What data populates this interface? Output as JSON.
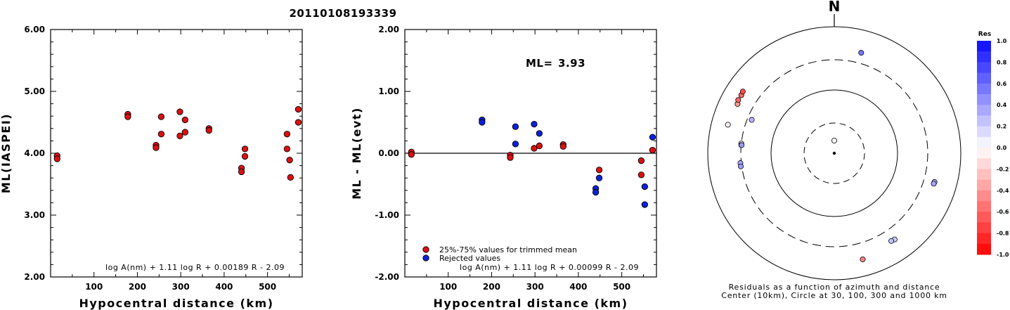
{
  "title": "20110108193339",
  "ml_summary": {
    "label": "ML=",
    "value": "3.93"
  },
  "colors": {
    "accepted": "#dd1111",
    "rejected": "#0a22dd"
  },
  "chart_data": [
    {
      "type": "scatter",
      "name": "left",
      "xlabel": "Hypocentral distance (km)",
      "ylabel": "ML(IASPEI)",
      "xlim": [
        0,
        580
      ],
      "ylim": [
        2.0,
        6.0
      ],
      "xticks": [
        "100",
        "200",
        "300",
        "400",
        "500"
      ],
      "yticks": [
        "2.00",
        "3.00",
        "4.00",
        "5.00",
        "6.00"
      ],
      "formula": "log A(nm) + 1.11 log R + 0.00189 R - 2.09",
      "points": [
        {
          "x": 15,
          "y": 3.96
        },
        {
          "x": 15,
          "y": 3.91
        },
        {
          "x": 178,
          "y": 4.63
        },
        {
          "x": 178,
          "y": 4.59
        },
        {
          "x": 243,
          "y": 4.13
        },
        {
          "x": 243,
          "y": 4.09
        },
        {
          "x": 255,
          "y": 4.59
        },
        {
          "x": 255,
          "y": 4.31
        },
        {
          "x": 298,
          "y": 4.67
        },
        {
          "x": 298,
          "y": 4.28
        },
        {
          "x": 310,
          "y": 4.54
        },
        {
          "x": 310,
          "y": 4.34
        },
        {
          "x": 365,
          "y": 4.4
        },
        {
          "x": 365,
          "y": 4.37
        },
        {
          "x": 440,
          "y": 3.76
        },
        {
          "x": 440,
          "y": 3.7
        },
        {
          "x": 448,
          "y": 4.07
        },
        {
          "x": 448,
          "y": 3.95
        },
        {
          "x": 545,
          "y": 4.31
        },
        {
          "x": 545,
          "y": 4.07
        },
        {
          "x": 551,
          "y": 3.89
        },
        {
          "x": 553,
          "y": 3.61
        },
        {
          "x": 571,
          "y": 4.71
        },
        {
          "x": 571,
          "y": 4.5
        }
      ]
    },
    {
      "type": "scatter",
      "name": "middle",
      "xlabel": "Hypocentral distance (km)",
      "ylabel": "ML - ML(evt)",
      "xlim": [
        0,
        580
      ],
      "ylim": [
        -2.0,
        2.0
      ],
      "xticks": [
        "100",
        "200",
        "300",
        "400",
        "500"
      ],
      "yticks": [
        "-2.00",
        "-1.00",
        "0.00",
        "1.00",
        "2.00"
      ],
      "reference_line": 0,
      "formula": "log A(nm) + 1.11 log R + 0.00099 R - 2.09",
      "legend": [
        {
          "label": "25%-75% values for trimmed mean",
          "color": "#dd1111"
        },
        {
          "label": "Rejected values",
          "color": "#0a22dd"
        }
      ],
      "series": [
        {
          "name": "25%-75% values for trimmed mean",
          "color": "#dd1111",
          "points": [
            {
              "x": 15,
              "y": 0.02
            },
            {
              "x": 15,
              "y": -0.02
            },
            {
              "x": 243,
              "y": -0.03
            },
            {
              "x": 243,
              "y": -0.07
            },
            {
              "x": 298,
              "y": 0.08
            },
            {
              "x": 310,
              "y": 0.12
            },
            {
              "x": 365,
              "y": 0.14
            },
            {
              "x": 365,
              "y": 0.11
            },
            {
              "x": 448,
              "y": -0.27
            },
            {
              "x": 545,
              "y": -0.12
            },
            {
              "x": 545,
              "y": -0.35
            },
            {
              "x": 571,
              "y": 0.05
            }
          ]
        },
        {
          "name": "Rejected values",
          "color": "#0a22dd",
          "points": [
            {
              "x": 178,
              "y": 0.54
            },
            {
              "x": 178,
              "y": 0.5
            },
            {
              "x": 255,
              "y": 0.43
            },
            {
              "x": 255,
              "y": 0.15
            },
            {
              "x": 298,
              "y": 0.47
            },
            {
              "x": 310,
              "y": 0.32
            },
            {
              "x": 440,
              "y": -0.57
            },
            {
              "x": 440,
              "y": -0.63
            },
            {
              "x": 448,
              "y": -0.4
            },
            {
              "x": 553,
              "y": -0.54
            },
            {
              "x": 553,
              "y": -0.83
            },
            {
              "x": 571,
              "y": 0.26
            }
          ]
        }
      ]
    },
    {
      "type": "scatter",
      "name": "polar",
      "north_label": "N",
      "caption_line1": "Residuals as a function of azimuth and distance",
      "caption_line2": "Center (10km), Circle at 30, 100, 300 and 1000 km",
      "rings_km": [
        10,
        30,
        100,
        300,
        1000
      ],
      "colorbar": {
        "title": "Res",
        "ticks": [
          "1.0",
          "0.8",
          "0.6",
          "0.4",
          "0.2",
          "0.0",
          "-0.2",
          "-0.4",
          "-0.6",
          "-0.8",
          "-1.0"
        ]
      },
      "points": [
        {
          "azimuth": 0,
          "distance_km": 15,
          "residual": 0.0
        },
        {
          "azimuth": 15,
          "distance_km": 440,
          "residual": 0.55
        },
        {
          "azimuth": 292,
          "distance_km": 255,
          "residual": 0.3
        },
        {
          "azimuth": 297,
          "distance_km": 520,
          "residual": -0.4
        },
        {
          "azimuth": 299,
          "distance_km": 545,
          "residual": -0.6
        },
        {
          "azimuth": 302,
          "distance_km": 540,
          "residual": -0.6
        },
        {
          "azimuth": 304,
          "distance_km": 555,
          "residual": -0.7
        },
        {
          "azimuth": 285,
          "distance_km": 550,
          "residual": -0.05
        },
        {
          "azimuth": 276,
          "distance_km": 300,
          "residual": 0.08
        },
        {
          "azimuth": 275,
          "distance_km": 298,
          "residual": 0.1
        },
        {
          "azimuth": 275,
          "distance_km": 295,
          "residual": 0.4
        },
        {
          "azimuth": 264,
          "distance_km": 310,
          "residual": 0.35
        },
        {
          "azimuth": 262,
          "distance_km": 310,
          "residual": 0.4
        },
        {
          "azimuth": 106,
          "distance_km": 445,
          "residual": 0.3
        },
        {
          "azimuth": 107,
          "distance_km": 440,
          "residual": 0.35
        },
        {
          "azimuth": 145,
          "distance_km": 460,
          "residual": 0.2
        },
        {
          "azimuth": 147,
          "distance_km": 450,
          "residual": 0.25
        },
        {
          "azimuth": 165,
          "distance_km": 545,
          "residual": -0.5
        }
      ]
    }
  ]
}
